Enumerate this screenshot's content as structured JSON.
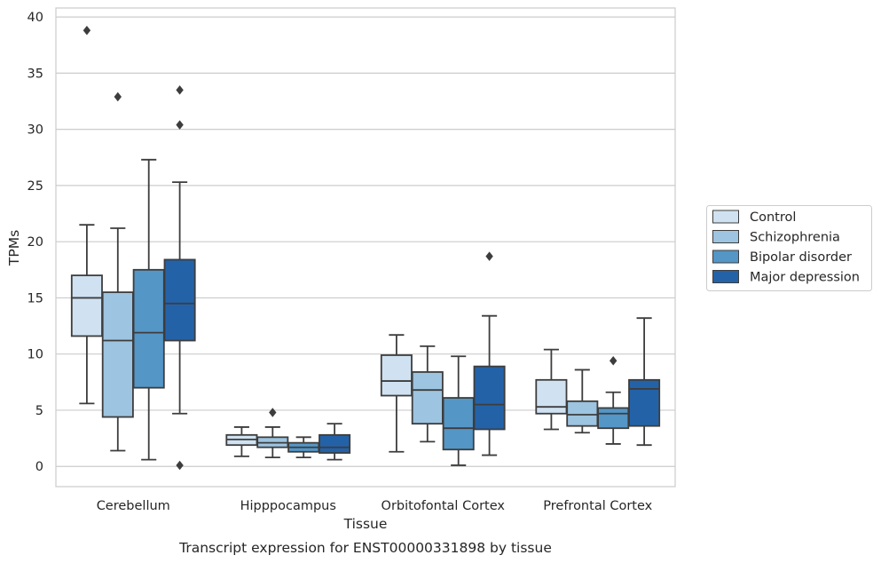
{
  "chart_data": {
    "type": "box",
    "title": "",
    "caption": "Transcript expression for ENST00000331898 by tissue",
    "xlabel": "Tissue",
    "ylabel": "TPMs",
    "ylim": [
      -1.8,
      40.8
    ],
    "yticks": [
      0,
      5,
      10,
      15,
      20,
      25,
      30,
      35,
      40
    ],
    "grid": "horizontal",
    "legend_position": "right",
    "categories": [
      "Cerebellum",
      "Hipppocampus",
      "Orbitofontal Cortex",
      "Prefrontal Cortex"
    ],
    "series": [
      {
        "name": "Control",
        "color": "#d0e2f1",
        "boxes": [
          {
            "whislo": 5.6,
            "q1": 11.6,
            "med": 15.0,
            "q3": 17.0,
            "whishi": 21.5,
            "fliers": [
              38.8
            ]
          },
          {
            "whislo": 0.9,
            "q1": 1.9,
            "med": 2.4,
            "q3": 2.8,
            "whishi": 3.5,
            "fliers": []
          },
          {
            "whislo": 1.3,
            "q1": 6.3,
            "med": 7.6,
            "q3": 9.9,
            "whishi": 11.7,
            "fliers": []
          },
          {
            "whislo": 3.3,
            "q1": 4.7,
            "med": 5.3,
            "q3": 7.7,
            "whishi": 10.4,
            "fliers": []
          }
        ]
      },
      {
        "name": "Schizophrenia",
        "color": "#9dc4e0",
        "boxes": [
          {
            "whislo": 1.4,
            "q1": 4.4,
            "med": 11.2,
            "q3": 15.5,
            "whishi": 21.2,
            "fliers": [
              32.9
            ]
          },
          {
            "whislo": 0.8,
            "q1": 1.7,
            "med": 2.1,
            "q3": 2.6,
            "whishi": 3.5,
            "fliers": [
              4.8
            ]
          },
          {
            "whislo": 2.2,
            "q1": 3.8,
            "med": 6.8,
            "q3": 8.4,
            "whishi": 10.7,
            "fliers": []
          },
          {
            "whislo": 3.0,
            "q1": 3.6,
            "med": 4.6,
            "q3": 5.8,
            "whishi": 8.6,
            "fliers": []
          }
        ]
      },
      {
        "name": "Bipolar disorder",
        "color": "#5496c6",
        "boxes": [
          {
            "whislo": 0.6,
            "q1": 7.0,
            "med": 11.9,
            "q3": 17.5,
            "whishi": 27.3,
            "fliers": []
          },
          {
            "whislo": 0.8,
            "q1": 1.3,
            "med": 1.7,
            "q3": 2.1,
            "whishi": 2.6,
            "fliers": []
          },
          {
            "whislo": 0.1,
            "q1": 1.5,
            "med": 3.4,
            "q3": 6.1,
            "whishi": 9.8,
            "fliers": []
          },
          {
            "whislo": 2.0,
            "q1": 3.4,
            "med": 4.7,
            "q3": 5.2,
            "whishi": 6.6,
            "fliers": [
              9.4
            ]
          }
        ]
      },
      {
        "name": "Major depression",
        "color": "#2462a8",
        "boxes": [
          {
            "whislo": 4.7,
            "q1": 11.2,
            "med": 14.5,
            "q3": 18.4,
            "whishi": 25.3,
            "fliers": [
              33.5,
              30.4,
              0.1
            ]
          },
          {
            "whislo": 0.6,
            "q1": 1.2,
            "med": 1.7,
            "q3": 2.8,
            "whishi": 3.8,
            "fliers": []
          },
          {
            "whislo": 1.0,
            "q1": 3.3,
            "med": 5.5,
            "q3": 8.9,
            "whishi": 13.4,
            "fliers": [
              18.7
            ]
          },
          {
            "whislo": 1.9,
            "q1": 3.6,
            "med": 6.9,
            "q3": 7.7,
            "whishi": 13.2,
            "fliers": []
          }
        ]
      }
    ]
  }
}
